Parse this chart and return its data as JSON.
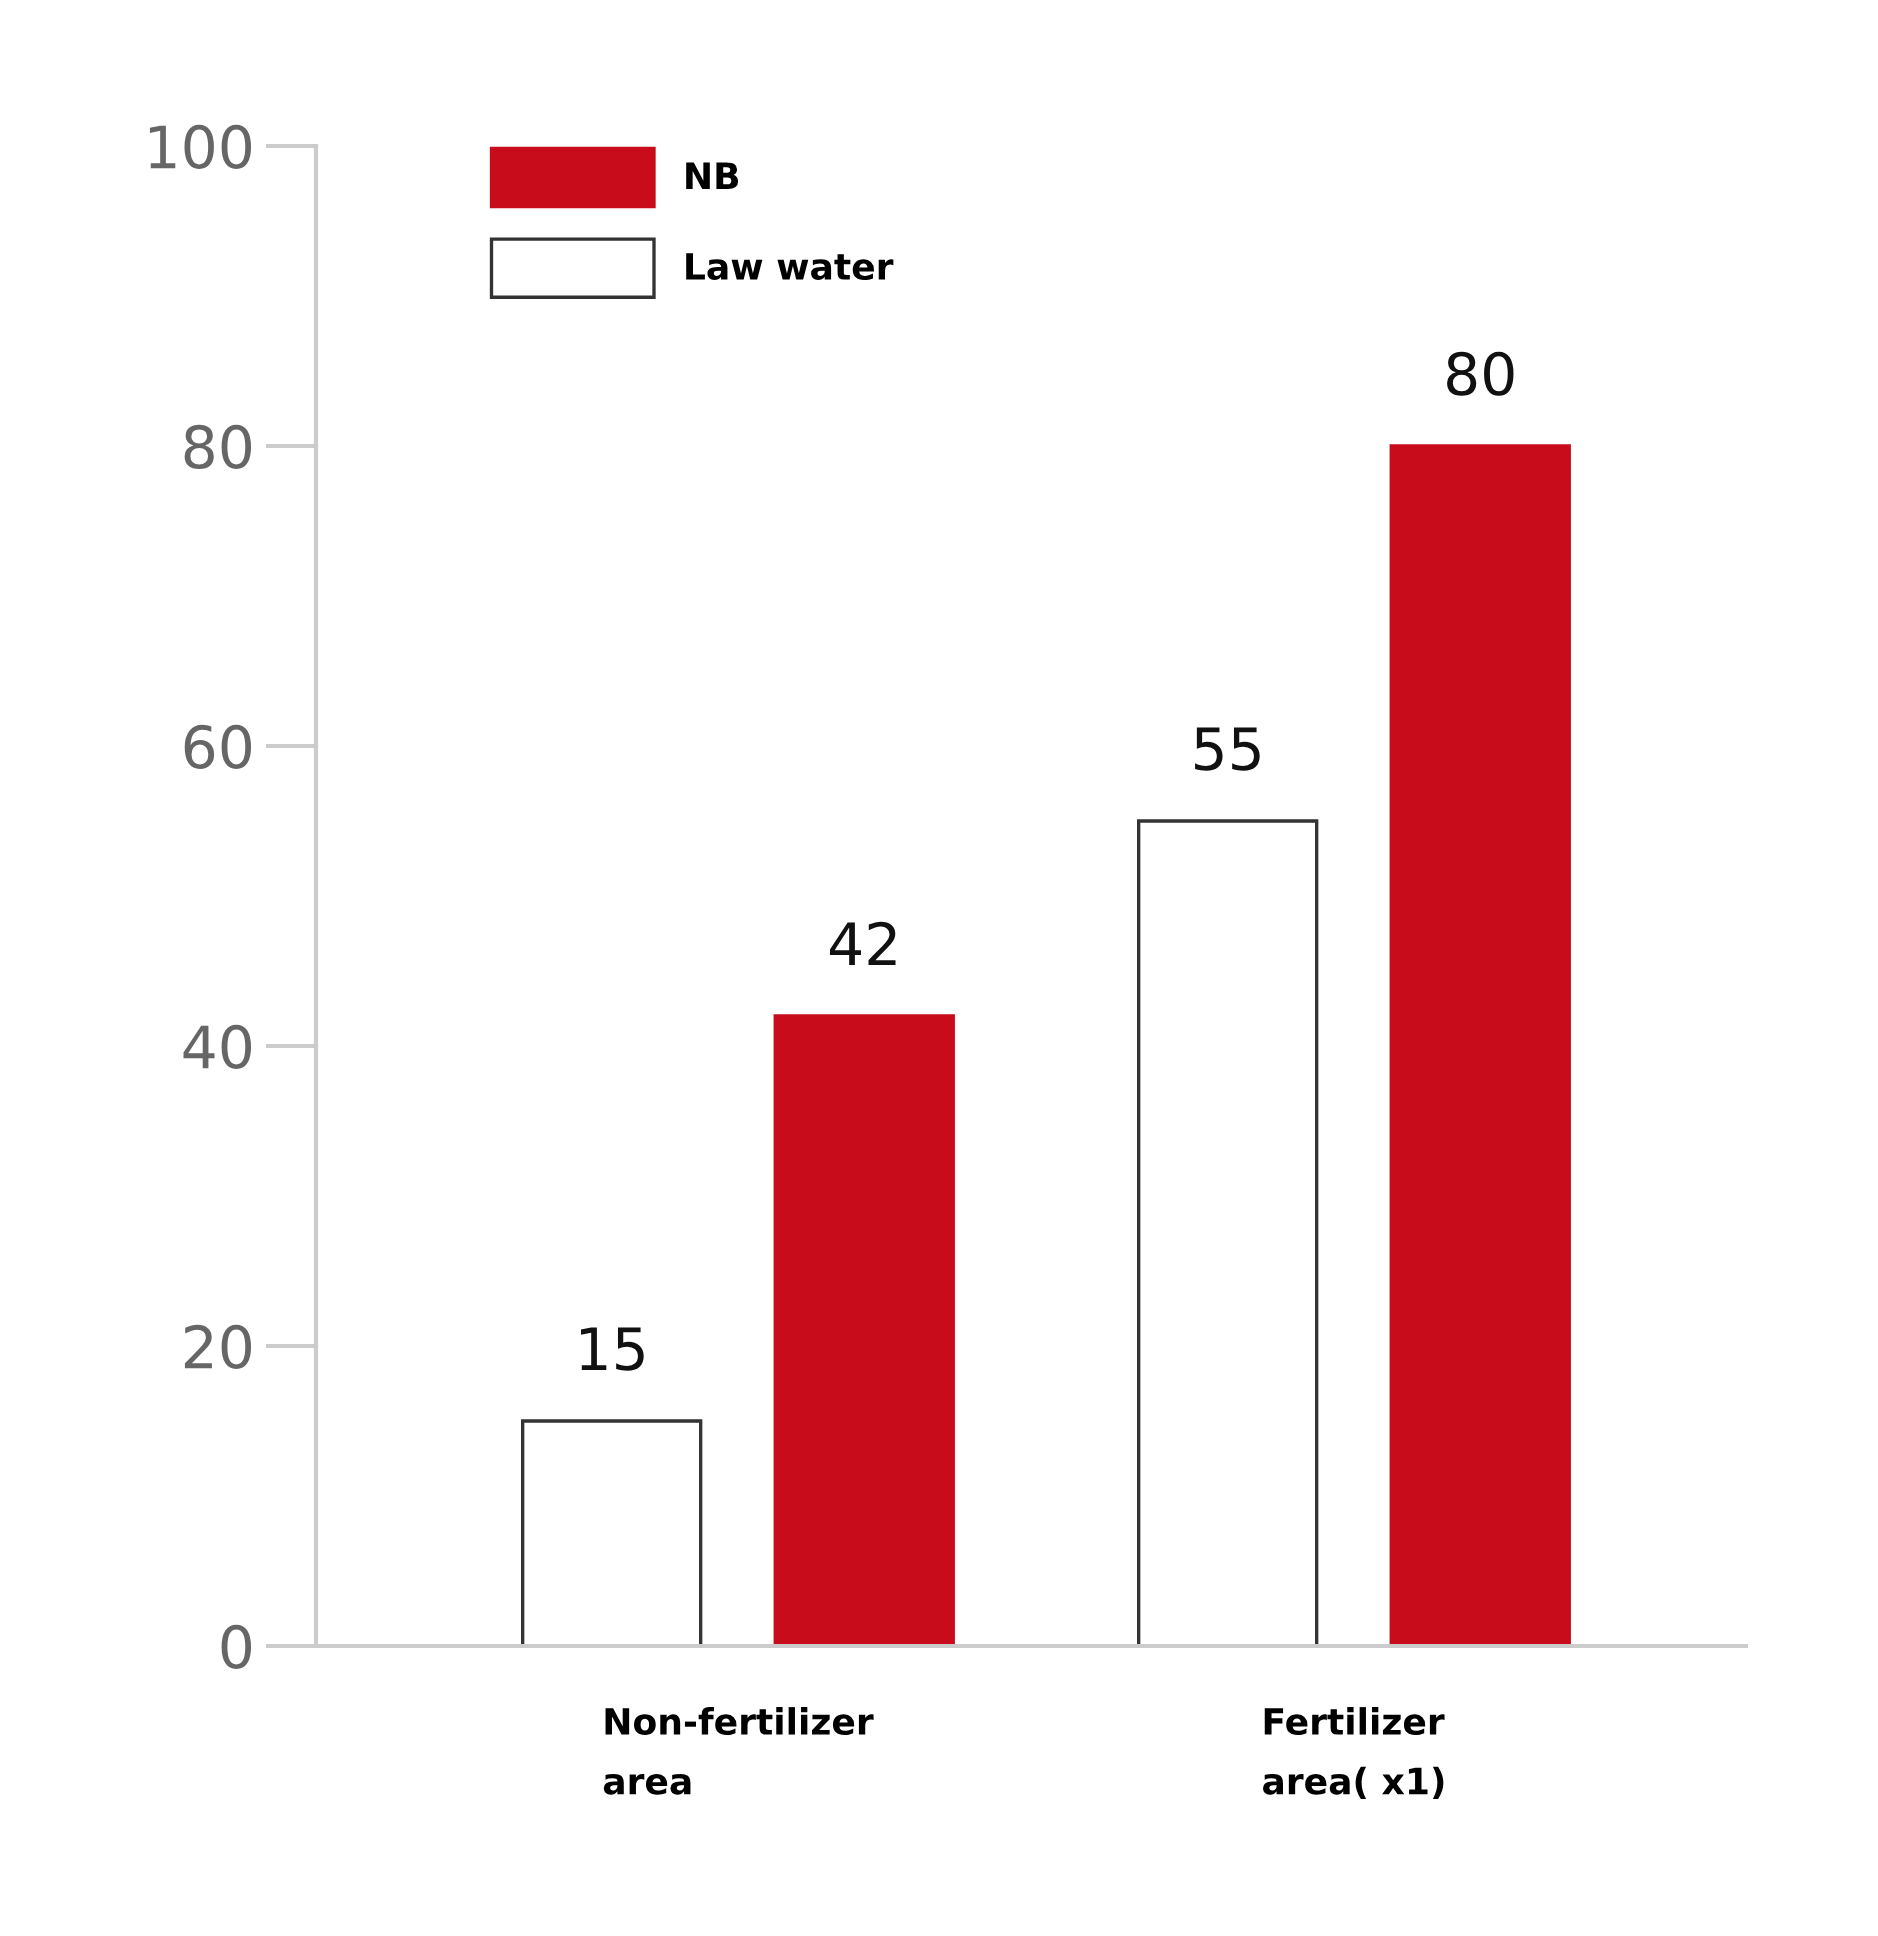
{
  "chart_data": {
    "type": "bar",
    "categories": [
      "Non-fertilizer\narea",
      "Fertilizer\narea( x1)"
    ],
    "series": [
      {
        "name": "Law water",
        "color": "#ffffff",
        "values": [
          15,
          55
        ]
      },
      {
        "name": "NB",
        "color": "#c80c1c",
        "values": [
          42,
          80
        ]
      }
    ],
    "ylim": [
      0,
      100
    ],
    "yticks": [
      0,
      20,
      40,
      60,
      80,
      100
    ],
    "grid": false,
    "legend": "top left",
    "data_labels": true
  }
}
